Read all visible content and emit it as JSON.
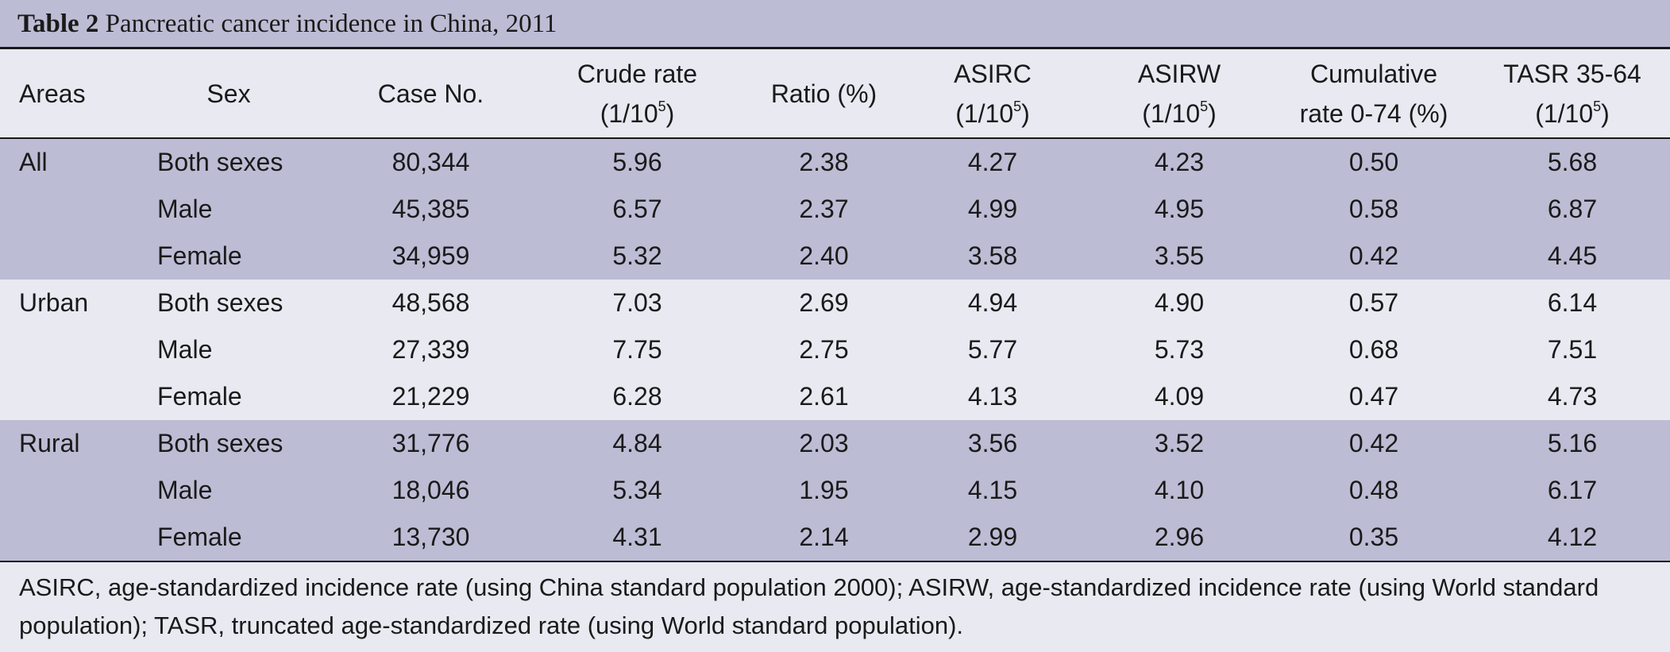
{
  "title": {
    "label": "Table 2",
    "text": "Pancreatic cancer incidence in China, 2011"
  },
  "headers": {
    "areas": "Areas",
    "sex": "Sex",
    "case_no": "Case No.",
    "crude_rate": "Crude rate",
    "crude_rate_unit_pre": "(1/10",
    "crude_rate_unit_sup": "5",
    "crude_rate_unit_post": ")",
    "ratio": "Ratio (%)",
    "asirc": "ASIRC",
    "asirc_unit_pre": "(1/10",
    "asirc_unit_sup": "5",
    "asirc_unit_post": ")",
    "asirw": "ASIRW",
    "asirw_unit_pre": "(1/10",
    "asirw_unit_sup": "5",
    "asirw_unit_post": ")",
    "cumulative": "Cumulative",
    "cumulative_sub": "rate 0-74 (%)",
    "tasr": "TASR 35-64",
    "tasr_unit_pre": "(1/10",
    "tasr_unit_sup": "5",
    "tasr_unit_post": ")"
  },
  "groups": [
    {
      "area": "All",
      "rows": [
        {
          "sex": "Both sexes",
          "case_no": "80,344",
          "crude": "5.96",
          "ratio": "2.38",
          "asirc": "4.27",
          "asirw": "4.23",
          "cum": "0.50",
          "tasr": "5.68"
        },
        {
          "sex": "Male",
          "case_no": "45,385",
          "crude": "6.57",
          "ratio": "2.37",
          "asirc": "4.99",
          "asirw": "4.95",
          "cum": "0.58",
          "tasr": "6.87"
        },
        {
          "sex": "Female",
          "case_no": "34,959",
          "crude": "5.32",
          "ratio": "2.40",
          "asirc": "3.58",
          "asirw": "3.55",
          "cum": "0.42",
          "tasr": "4.45"
        }
      ]
    },
    {
      "area": "Urban",
      "rows": [
        {
          "sex": "Both sexes",
          "case_no": "48,568",
          "crude": "7.03",
          "ratio": "2.69",
          "asirc": "4.94",
          "asirw": "4.90",
          "cum": "0.57",
          "tasr": "6.14"
        },
        {
          "sex": "Male",
          "case_no": "27,339",
          "crude": "7.75",
          "ratio": "2.75",
          "asirc": "5.77",
          "asirw": "5.73",
          "cum": "0.68",
          "tasr": "7.51"
        },
        {
          "sex": "Female",
          "case_no": "21,229",
          "crude": "6.28",
          "ratio": "2.61",
          "asirc": "4.13",
          "asirw": "4.09",
          "cum": "0.47",
          "tasr": "4.73"
        }
      ]
    },
    {
      "area": "Rural",
      "rows": [
        {
          "sex": "Both sexes",
          "case_no": "31,776",
          "crude": "4.84",
          "ratio": "2.03",
          "asirc": "3.56",
          "asirw": "3.52",
          "cum": "0.42",
          "tasr": "5.16"
        },
        {
          "sex": "Male",
          "case_no": "18,046",
          "crude": "5.34",
          "ratio": "1.95",
          "asirc": "4.15",
          "asirw": "4.10",
          "cum": "0.48",
          "tasr": "6.17"
        },
        {
          "sex": "Female",
          "case_no": "13,730",
          "crude": "4.31",
          "ratio": "2.14",
          "asirc": "2.99",
          "asirw": "2.96",
          "cum": "0.35",
          "tasr": "4.12"
        }
      ]
    }
  ],
  "footnote": "ASIRC, age-standardized incidence rate (using China standard population 2000); ASIRW, age-standardized incidence rate (using World standard population); TASR, truncated age-standardized rate (using World standard population).",
  "colors": {
    "shaded_band": "#bcbdd4",
    "light_band": "#e8e9f1",
    "rule": "#1a1a1a"
  }
}
